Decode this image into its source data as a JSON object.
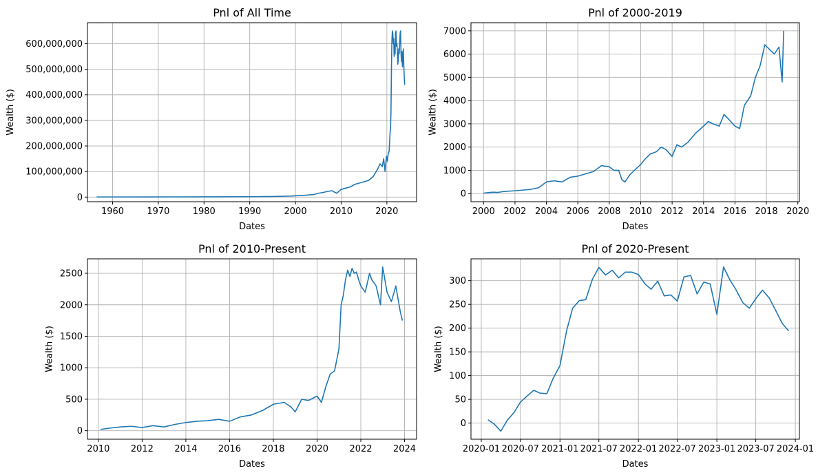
{
  "chart_data": [
    {
      "type": "line",
      "title": "Pnl of All Time",
      "xlabel": "Dates",
      "ylabel": "Wealth ($)",
      "x_axis": "year",
      "xlim": [
        1954.5,
        2026.5
      ],
      "ylim": [
        -18000000,
        682000000
      ],
      "xticks": [
        1960,
        1970,
        1980,
        1990,
        2000,
        2010,
        2020
      ],
      "xtick_labels": [
        "1960",
        "1970",
        "1980",
        "1990",
        "2000",
        "2010",
        "2020"
      ],
      "yticks": [
        0,
        100000000,
        200000000,
        300000000,
        400000000,
        500000000,
        600000000
      ],
      "ytick_labels": [
        "0",
        "100,000,000",
        "200,000,000",
        "300,000,000",
        "400,000,000",
        "500,000,000",
        "600,000,000"
      ],
      "grid": true,
      "color": "#1f77b4",
      "series": [
        {
          "x": [
            1956.5,
            1970,
            1980,
            1990,
            1995,
            1999,
            2000,
            2002,
            2004,
            2005,
            2006,
            2007,
            2008,
            2008.5,
            2009,
            2010,
            2011,
            2012,
            2013,
            2014,
            2015,
            2016,
            2017,
            2018,
            2018.5,
            2019,
            2019.3,
            2019.6,
            2019.9,
            2020.1,
            2020.3,
            2020.5,
            2020.7,
            2020.8,
            2020.9,
            2021.0,
            2021.1,
            2021.2,
            2021.3,
            2021.4,
            2021.5,
            2021.6,
            2021.7,
            2021.8,
            2021.9,
            2022.0,
            2022.1,
            2022.2,
            2022.3,
            2022.4,
            2022.5,
            2022.6,
            2022.7,
            2022.8,
            2022.9,
            2023.0,
            2023.1,
            2023.2,
            2023.3,
            2023.4,
            2023.5,
            2023.6,
            2023.7,
            2023.8,
            2023.9
          ],
          "y": [
            500000,
            700000,
            1000000,
            1500000,
            2500000,
            4000000,
            5000000,
            7000000,
            10000000,
            15000000,
            18000000,
            22000000,
            25000000,
            20000000,
            15000000,
            30000000,
            35000000,
            40000000,
            50000000,
            55000000,
            60000000,
            65000000,
            80000000,
            110000000,
            130000000,
            120000000,
            150000000,
            100000000,
            160000000,
            140000000,
            170000000,
            180000000,
            250000000,
            270000000,
            330000000,
            500000000,
            610000000,
            650000000,
            640000000,
            600000000,
            620000000,
            550000000,
            600000000,
            560000000,
            640000000,
            650000000,
            590000000,
            600000000,
            570000000,
            520000000,
            540000000,
            580000000,
            560000000,
            600000000,
            640000000,
            650000000,
            560000000,
            530000000,
            570000000,
            510000000,
            540000000,
            580000000,
            520000000,
            470000000,
            440000000
          ]
        }
      ]
    },
    {
      "type": "line",
      "title": "Pnl of 2000-2019",
      "xlabel": "Dates",
      "ylabel": "Wealth ($)",
      "x_axis": "year",
      "xlim": [
        1999.2,
        2020.1
      ],
      "ylim": [
        -350,
        7350
      ],
      "xticks": [
        2000,
        2002,
        2004,
        2006,
        2008,
        2010,
        2012,
        2014,
        2016,
        2018,
        2020
      ],
      "xtick_labels": [
        "2000",
        "2002",
        "2004",
        "2006",
        "2008",
        "2010",
        "2012",
        "2014",
        "2016",
        "2018",
        "2020"
      ],
      "yticks": [
        0,
        1000,
        2000,
        3000,
        4000,
        5000,
        6000,
        7000
      ],
      "ytick_labels": [
        "0",
        "1000",
        "2000",
        "3000",
        "4000",
        "5000",
        "6000",
        "7000"
      ],
      "grid": true,
      "color": "#1f77b4",
      "series": [
        {
          "x": [
            2000.0,
            2000.3,
            2000.6,
            2000.9,
            2001.2,
            2001.5,
            2002.0,
            2002.5,
            2003.0,
            2003.5,
            2004.0,
            2004.5,
            2005.0,
            2005.5,
            2006.0,
            2006.5,
            2007.0,
            2007.5,
            2008.0,
            2008.3,
            2008.6,
            2008.8,
            2009.0,
            2009.3,
            2009.6,
            2010.0,
            2010.3,
            2010.6,
            2011.0,
            2011.3,
            2011.6,
            2012.0,
            2012.3,
            2012.6,
            2013.0,
            2013.5,
            2014.0,
            2014.3,
            2014.6,
            2015.0,
            2015.3,
            2015.6,
            2016.0,
            2016.3,
            2016.6,
            2017.0,
            2017.3,
            2017.6,
            2017.9,
            2018.2,
            2018.5,
            2018.8,
            2019.0,
            2019.1
          ],
          "y": [
            20,
            40,
            60,
            50,
            80,
            100,
            120,
            150,
            180,
            250,
            500,
            550,
            500,
            700,
            750,
            850,
            950,
            1200,
            1150,
            1000,
            1000,
            600,
            500,
            800,
            1000,
            1250,
            1500,
            1700,
            1800,
            2000,
            1900,
            1600,
            2100,
            2000,
            2200,
            2600,
            2900,
            3100,
            3000,
            2900,
            3400,
            3200,
            2900,
            2800,
            3800,
            4200,
            5000,
            5500,
            6400,
            6200,
            6000,
            6300,
            4800,
            7000
          ]
        }
      ]
    },
    {
      "type": "line",
      "title": "Pnl of 2010-Present",
      "xlabel": "Dates",
      "ylabel": "Wealth ($)",
      "x_axis": "year",
      "xlim": [
        2009.5,
        2024.55
      ],
      "ylim": [
        -135,
        2730
      ],
      "xticks": [
        2010,
        2012,
        2014,
        2016,
        2018,
        2020,
        2022,
        2024
      ],
      "xtick_labels": [
        "2010",
        "2012",
        "2014",
        "2016",
        "2018",
        "2020",
        "2022",
        "2024"
      ],
      "yticks": [
        0,
        500,
        1000,
        1500,
        2000,
        2500
      ],
      "ytick_labels": [
        "0",
        "500",
        "1000",
        "1500",
        "2000",
        "2500"
      ],
      "grid": true,
      "color": "#1f77b4",
      "series": [
        {
          "x": [
            2010.1,
            2010.5,
            2011.0,
            2011.5,
            2012.0,
            2012.5,
            2013.0,
            2013.5,
            2014.0,
            2014.5,
            2015.0,
            2015.5,
            2016.0,
            2016.5,
            2017.0,
            2017.5,
            2018.0,
            2018.5,
            2018.8,
            2019.0,
            2019.3,
            2019.6,
            2020.0,
            2020.2,
            2020.4,
            2020.6,
            2020.8,
            2021.0,
            2021.1,
            2021.2,
            2021.3,
            2021.4,
            2021.5,
            2021.6,
            2021.7,
            2021.8,
            2021.9,
            2022.0,
            2022.2,
            2022.4,
            2022.5,
            2022.7,
            2022.9,
            2023.0,
            2023.1,
            2023.2,
            2023.4,
            2023.6,
            2023.7,
            2023.8,
            2023.9
          ],
          "y": [
            20,
            40,
            60,
            70,
            50,
            80,
            60,
            100,
            130,
            150,
            160,
            180,
            150,
            220,
            250,
            320,
            420,
            450,
            380,
            300,
            500,
            480,
            550,
            450,
            700,
            900,
            950,
            1300,
            2000,
            2150,
            2400,
            2550,
            2450,
            2580,
            2500,
            2520,
            2400,
            2300,
            2200,
            2500,
            2400,
            2300,
            2000,
            2600,
            2400,
            2200,
            2050,
            2300,
            2100,
            1900,
            1750
          ]
        }
      ]
    },
    {
      "type": "line",
      "title": "Pnl of 2020-Present",
      "xlabel": "Dates",
      "ylabel": "Wealth ($)",
      "x_axis": "date",
      "xlim": [
        "2019-11-14",
        "2024-01-20"
      ],
      "ylim": [
        -34,
        346
      ],
      "xticks": [
        "2020-01-01",
        "2020-07-01",
        "2021-01-01",
        "2021-07-01",
        "2022-01-01",
        "2022-07-01",
        "2023-01-01",
        "2023-07-01",
        "2024-01-01"
      ],
      "xtick_labels": [
        "2020-01",
        "2020-07",
        "2021-01",
        "2021-07",
        "2022-01",
        "2022-07",
        "2023-01",
        "2023-07",
        "2024-01"
      ],
      "yticks": [
        0,
        50,
        100,
        150,
        200,
        250,
        300
      ],
      "ytick_labels": [
        "0",
        "50",
        "100",
        "150",
        "200",
        "250",
        "300"
      ],
      "grid": true,
      "color": "#1f77b4",
      "series": [
        {
          "x": [
            "2020-02-01",
            "2020-03-01",
            "2020-04-01",
            "2020-05-01",
            "2020-06-01",
            "2020-07-01",
            "2020-08-01",
            "2020-09-01",
            "2020-10-01",
            "2020-11-01",
            "2020-12-01",
            "2021-01-01",
            "2021-02-01",
            "2021-03-01",
            "2021-04-01",
            "2021-05-01",
            "2021-06-01",
            "2021-07-01",
            "2021-08-01",
            "2021-09-01",
            "2021-10-01",
            "2021-11-01",
            "2021-12-01",
            "2022-01-01",
            "2022-02-01",
            "2022-03-01",
            "2022-04-01",
            "2022-05-01",
            "2022-06-01",
            "2022-07-01",
            "2022-08-01",
            "2022-09-01",
            "2022-10-01",
            "2022-11-01",
            "2022-12-01",
            "2023-01-01",
            "2023-02-01",
            "2023-03-01",
            "2023-04-01",
            "2023-05-01",
            "2023-06-01",
            "2023-07-01",
            "2023-08-01",
            "2023-09-01",
            "2023-10-01",
            "2023-11-01",
            "2023-12-01"
          ],
          "y": [
            7,
            -2,
            -17,
            6,
            22,
            44,
            57,
            69,
            63,
            62,
            95,
            121,
            195,
            242,
            258,
            260,
            303,
            328,
            312,
            322,
            306,
            318,
            318,
            313,
            293,
            282,
            299,
            268,
            270,
            257,
            308,
            311,
            272,
            297,
            293,
            229,
            329,
            303,
            280,
            254,
            242,
            262,
            280,
            264,
            238,
            210,
            194
          ]
        }
      ]
    }
  ]
}
